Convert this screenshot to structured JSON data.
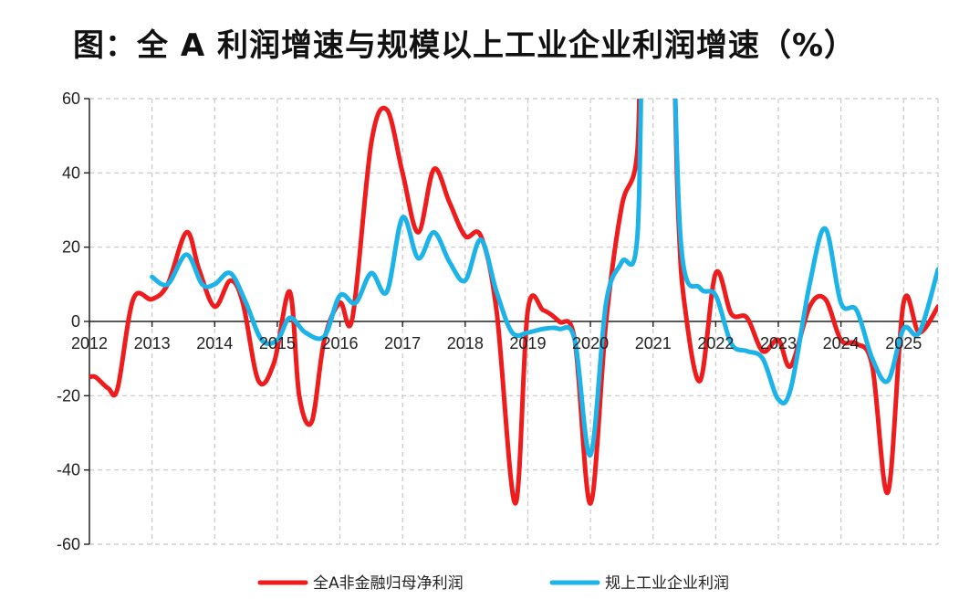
{
  "chart_data": {
    "type": "line",
    "title": "图：全 A 利润增速与规模以上工业企业利润增速（%）",
    "xlabel": "",
    "ylabel": "",
    "x_ticks": [
      "2012",
      "2013",
      "2014",
      "2015",
      "2016",
      "2017",
      "2018",
      "2019",
      "2020",
      "2021",
      "2022",
      "2023",
      "2024",
      "2025"
    ],
    "y_ticks": [
      60,
      40,
      20,
      0,
      -20,
      -40,
      -60
    ],
    "ylim": [
      -60,
      60
    ],
    "xlim": [
      2012.0,
      2025.55
    ],
    "grid": "dashed",
    "legend": "bottom",
    "series": [
      {
        "name": "全A非金融归母净利润",
        "color": "#ee1c1c",
        "x": [
          2012.0,
          2012.1,
          2012.3,
          2012.45,
          2012.7,
          2013.0,
          2013.25,
          2013.55,
          2013.75,
          2014.0,
          2014.25,
          2014.45,
          2014.7,
          2014.95,
          2015.2,
          2015.35,
          2015.55,
          2015.75,
          2016.0,
          2016.2,
          2016.5,
          2016.75,
          2017.0,
          2017.25,
          2017.5,
          2017.75,
          2018.0,
          2018.25,
          2018.5,
          2018.8,
          2019.0,
          2019.25,
          2019.5,
          2019.75,
          2020.0,
          2020.25,
          2020.5,
          2020.75,
          2020.85,
          2021.25,
          2021.4,
          2021.5,
          2021.75,
          2022.0,
          2022.25,
          2022.5,
          2022.75,
          2023.0,
          2023.2,
          2023.5,
          2023.75,
          2024.0,
          2024.25,
          2024.5,
          2024.75,
          2025.0,
          2025.25,
          2025.55
        ],
        "values": [
          -15,
          -15,
          -18,
          -18,
          6,
          6,
          10,
          24,
          14,
          4,
          11,
          5,
          -16,
          -11,
          8,
          -20,
          -27,
          -5,
          5,
          1,
          48,
          57,
          40,
          24,
          41,
          32,
          23,
          23,
          3,
          -49,
          3,
          3,
          0,
          -5,
          -49,
          0,
          31,
          46,
          60,
          60,
          30,
          5,
          -16,
          13,
          2,
          1,
          -8,
          -5,
          -12,
          4,
          6,
          -5,
          -6,
          -12,
          -46,
          5,
          -3,
          4
        ]
      },
      {
        "name": "规上工业企业利润",
        "color": "#1cb3e8",
        "x": [
          2013.0,
          2013.25,
          2013.55,
          2013.8,
          2014.0,
          2014.25,
          2014.5,
          2014.75,
          2015.0,
          2015.2,
          2015.45,
          2015.75,
          2016.0,
          2016.25,
          2016.5,
          2016.75,
          2017.0,
          2017.25,
          2017.5,
          2017.75,
          2018.0,
          2018.25,
          2018.5,
          2018.75,
          2019.0,
          2019.25,
          2019.5,
          2019.75,
          2020.0,
          2020.25,
          2020.5,
          2020.75,
          2020.88,
          2021.25,
          2021.45,
          2021.75,
          2022.0,
          2022.25,
          2022.5,
          2022.75,
          2023.0,
          2023.2,
          2023.5,
          2023.75,
          2024.0,
          2024.25,
          2024.5,
          2024.75,
          2025.0,
          2025.25,
          2025.55
        ],
        "values": [
          12,
          10,
          18,
          10,
          10,
          13,
          5,
          -5,
          -5,
          1,
          -3,
          -4,
          7,
          5,
          13,
          8,
          28,
          17,
          24,
          16,
          11,
          22,
          8,
          -3,
          -3,
          -2,
          -2,
          -5,
          -36,
          5,
          16,
          23,
          60,
          60,
          20,
          9,
          7,
          -6,
          -8,
          -10,
          -21,
          -18,
          10,
          25,
          5,
          3,
          -10,
          -16,
          -2,
          -3,
          14
        ]
      }
    ]
  }
}
